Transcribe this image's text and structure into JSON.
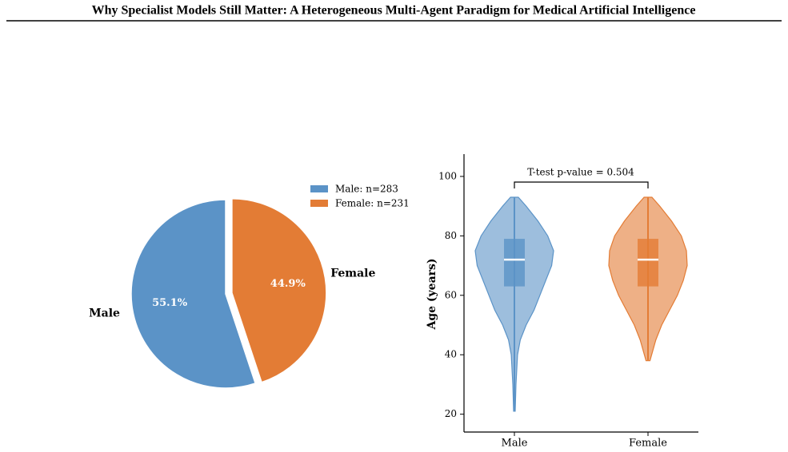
{
  "page_title": "Why Specialist Models Still Matter: A Heterogeneous Multi-Agent Paradigm for Medical Artificial Intelligence",
  "chart_data": [
    {
      "type": "pie",
      "categories": [
        "Male",
        "Female"
      ],
      "values": [
        55.1,
        44.9
      ],
      "value_labels": [
        "55.1%",
        "44.9%"
      ],
      "colors": [
        "#5b93c7",
        "#e37c35"
      ],
      "legend_labels": [
        "Male: n=283",
        "Female: n=231"
      ],
      "legend": "upper right",
      "exploded": [
        false,
        true
      ]
    },
    {
      "type": "violin",
      "categories": [
        "Male",
        "Female"
      ],
      "ylabel": "Age (years)",
      "annotation": "T-test p-value = 0.504",
      "ylim": [
        14,
        107.5
      ],
      "yticks": [
        20,
        40,
        60,
        80,
        100
      ],
      "series": [
        {
          "name": "Male",
          "color": "#5b93c7",
          "min": 21,
          "q1": 63,
          "median": 72,
          "q3": 79,
          "max": 93,
          "violin_y": [
            21,
            30,
            40,
            45,
            50,
            55,
            60,
            65,
            70,
            75,
            80,
            85,
            90,
            93
          ],
          "violin_width": [
            0.02,
            0.04,
            0.08,
            0.15,
            0.3,
            0.5,
            0.65,
            0.8,
            0.95,
            1.0,
            0.85,
            0.6,
            0.3,
            0.1
          ]
        },
        {
          "name": "Female",
          "color": "#e37c35",
          "min": 38,
          "q1": 63,
          "median": 72,
          "q3": 79,
          "max": 93,
          "violin_y": [
            38,
            45,
            50,
            55,
            60,
            65,
            70,
            75,
            80,
            85,
            90,
            93
          ],
          "violin_width": [
            0.05,
            0.2,
            0.35,
            0.55,
            0.75,
            0.9,
            1.0,
            0.98,
            0.85,
            0.6,
            0.3,
            0.1
          ]
        }
      ]
    }
  ]
}
